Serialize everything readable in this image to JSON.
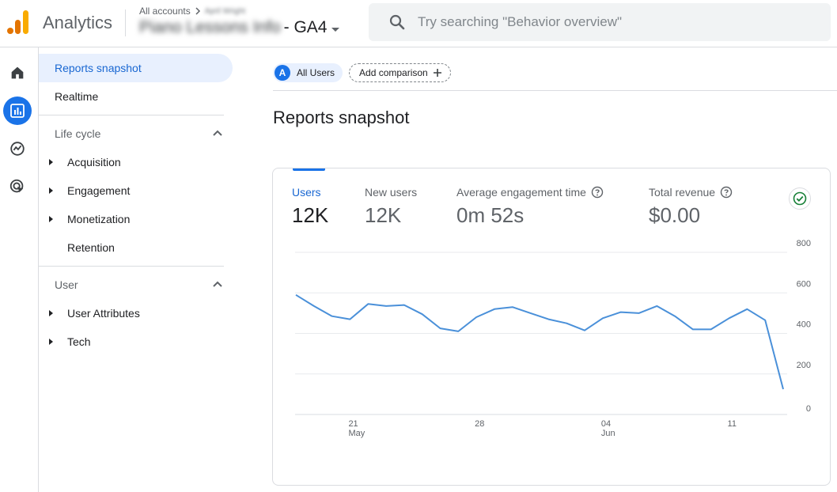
{
  "header": {
    "app_name": "Analytics",
    "breadcrumb_root": "All accounts",
    "account_name": "April Wright",
    "property_name_prefix": "Piano Lessons Info",
    "property_name_suffix": " - GA4",
    "search_placeholder": "Try searching \"Behavior overview\"",
    "logo_colors": [
      "#f9ab00",
      "#e37400",
      "#e37400"
    ]
  },
  "rail": {
    "items": [
      {
        "icon": "home-icon",
        "active": false
      },
      {
        "icon": "reports-icon",
        "active": true
      },
      {
        "icon": "explore-icon",
        "active": false
      },
      {
        "icon": "advertising-icon",
        "active": false
      }
    ],
    "accent": "#1a73e8"
  },
  "nav": {
    "reports_snapshot": "Reports snapshot",
    "realtime": "Realtime",
    "lifecycle": {
      "title": "Life cycle",
      "items": [
        "Acquisition",
        "Engagement",
        "Monetization",
        "Retention"
      ]
    },
    "user": {
      "title": "User",
      "items": [
        "User Attributes",
        "Tech"
      ]
    }
  },
  "main": {
    "comparison_chip": {
      "avatar": "A",
      "label": "All Users"
    },
    "add_comparison": "Add comparison",
    "page_title": "Reports snapshot",
    "metrics": [
      {
        "label": "Users",
        "value": "12K",
        "active": true,
        "help": false
      },
      {
        "label": "New users",
        "value": "12K",
        "active": false,
        "help": false
      },
      {
        "label": "Average engagement time",
        "value": "0m 52s",
        "active": false,
        "help": true
      },
      {
        "label": "Total revenue",
        "value": "$0.00",
        "active": false,
        "help": true
      }
    ]
  },
  "chart_data": {
    "type": "line",
    "title": "",
    "series": [
      {
        "name": "Users",
        "color": "#4a90d9",
        "values": [
          590,
          535,
          485,
          470,
          545,
          535,
          540,
          495,
          425,
          410,
          480,
          520,
          530,
          500,
          470,
          450,
          415,
          475,
          505,
          500,
          535,
          485,
          420,
          420,
          475,
          520,
          465,
          125
        ]
      }
    ],
    "x_tick_labels": [
      {
        "label": "21",
        "sublabel": "May",
        "index": 3
      },
      {
        "label": "28",
        "sublabel": "",
        "index": 10
      },
      {
        "label": "04",
        "sublabel": "Jun",
        "index": 17
      },
      {
        "label": "11",
        "sublabel": "",
        "index": 24
      }
    ],
    "y_ticks": [
      0,
      200,
      400,
      600,
      800
    ],
    "ylim": [
      0,
      800
    ],
    "y_axis_side": "right",
    "grid": true
  }
}
